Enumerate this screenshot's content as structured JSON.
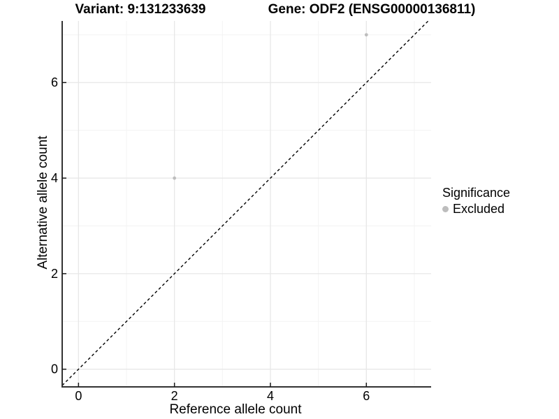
{
  "titles": {
    "left": "Variant: 9:131233639",
    "right": "Gene: ODF2 (ENSG00000136811)"
  },
  "chart_data": {
    "type": "scatter",
    "xlabel": "Reference allele count",
    "ylabel": "Alternative allele count",
    "x_ticks": [
      0,
      2,
      4,
      6
    ],
    "y_ticks": [
      0,
      2,
      4,
      6
    ],
    "x_minor_ticks": [
      1,
      3,
      5,
      7
    ],
    "y_minor_ticks": [
      1,
      3,
      5,
      7
    ],
    "xlim": [
      -0.34,
      7.35
    ],
    "ylim": [
      -0.37,
      7.29
    ],
    "grid": true,
    "points": [
      {
        "x": 2,
        "y": 4,
        "significance": "Excluded"
      },
      {
        "x": 6,
        "y": 7,
        "significance": "Excluded"
      }
    ],
    "reference_line": {
      "type": "identity",
      "style": "dashed"
    },
    "legend": {
      "title": "Significance",
      "position": "right",
      "items": [
        {
          "label": "Excluded",
          "color": "#bdbdbd"
        }
      ]
    }
  },
  "colors": {
    "point": "#bdbdbd",
    "axis_line": "#333333",
    "tick": "#1a1a1a",
    "grid_major": "#e7e7e7",
    "grid_minor": "#f3f3f3",
    "reference_line": "#000000",
    "text": "#000000",
    "background": "#ffffff"
  }
}
